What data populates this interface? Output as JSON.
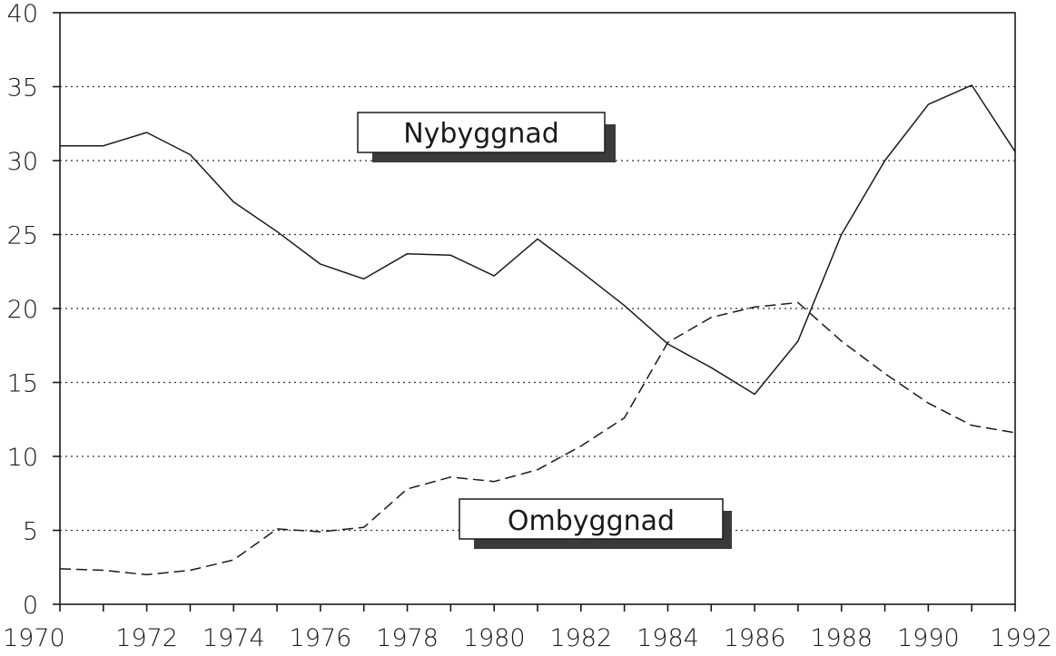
{
  "chart_data": {
    "type": "line",
    "x": [
      1970,
      1971,
      1972,
      1973,
      1974,
      1975,
      1976,
      1977,
      1978,
      1979,
      1980,
      1981,
      1982,
      1983,
      1984,
      1985,
      1986,
      1987,
      1988,
      1989,
      1990,
      1991,
      1992
    ],
    "series": [
      {
        "name": "Nybyggnad",
        "style": "solid",
        "values": [
          31,
          31,
          31.9,
          30.4,
          27.2,
          25.2,
          23,
          22,
          23.7,
          23.6,
          22.2,
          24.7,
          22.5,
          20.2,
          17.6,
          16,
          14.2,
          17.8,
          25,
          30,
          33.8,
          35.1,
          30.6
        ]
      },
      {
        "name": "Ombyggnad",
        "style": "dashed",
        "values": [
          2.4,
          2.3,
          2.0,
          2.3,
          3.0,
          5.1,
          4.9,
          5.2,
          7.8,
          8.6,
          8.3,
          9.1,
          10.7,
          12.6,
          17.7,
          19.4,
          20.1,
          20.4,
          17.8,
          15.6,
          13.6,
          12.1,
          11.6
        ]
      }
    ],
    "x_ticks": [
      "1970",
      "1972",
      "1974",
      "1976",
      "1978",
      "1980",
      "1982",
      "1984",
      "1986",
      "1988",
      "1990",
      "1992"
    ],
    "y_ticks": [
      "0",
      "5",
      "10",
      "15",
      "20",
      "25",
      "30",
      "35",
      "40"
    ],
    "xlim": [
      1970,
      1992
    ],
    "ylim": [
      0,
      40
    ],
    "grid": "horizontal dotted",
    "labels": {
      "nybyggnad": "Nybyggnad",
      "ombyggnad": "Ombyggnad"
    },
    "colors": {
      "line": "#1a1a1a",
      "grid": "#333333",
      "box_shadow": "#3a3a3a"
    }
  }
}
